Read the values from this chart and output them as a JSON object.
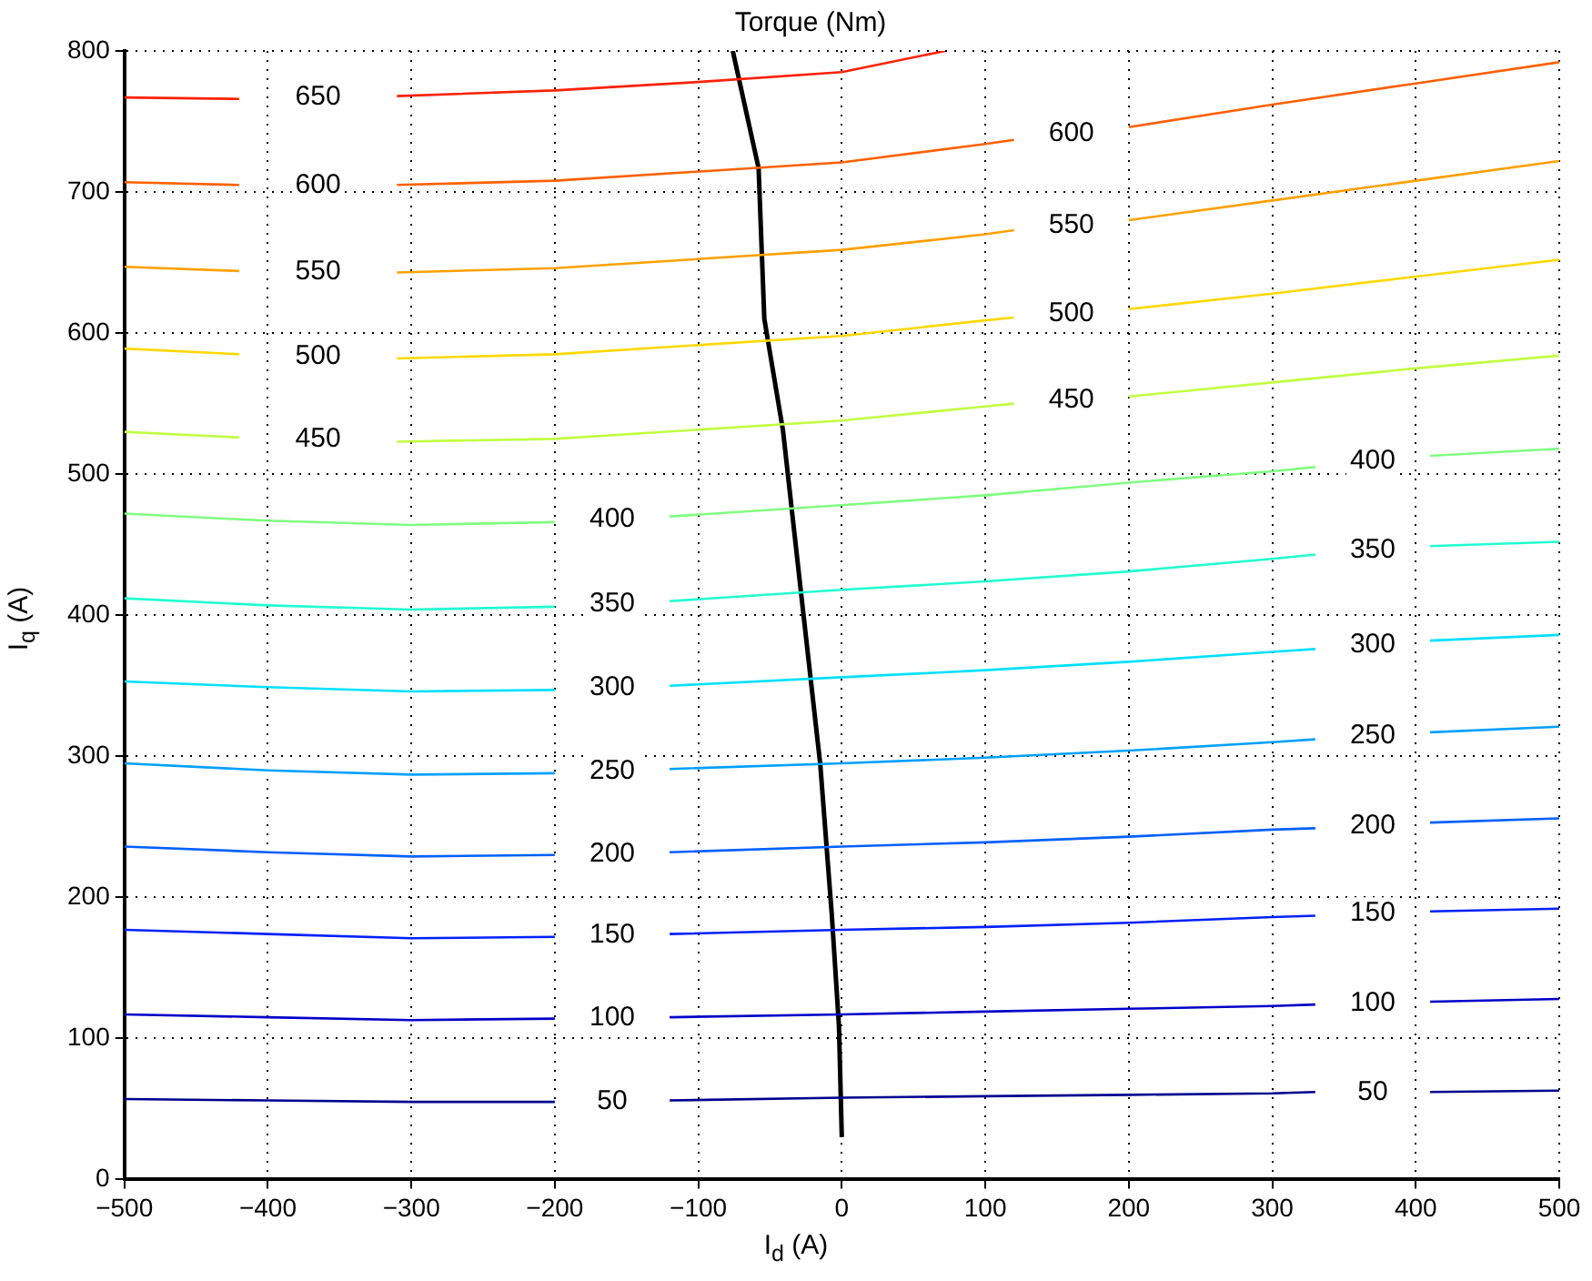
{
  "chart_data": {
    "type": "line",
    "title": "Torque (Nm)",
    "xlabel": "I$_{d}$ (A)",
    "ylabel": "I$_{q}$ (A)",
    "xlim": [
      -500,
      500
    ],
    "ylim": [
      0,
      800
    ],
    "xticks": [
      {
        "value": -500,
        "label": "−500"
      },
      {
        "value": -400,
        "label": "−400"
      },
      {
        "value": -300,
        "label": "−300"
      },
      {
        "value": -200,
        "label": "−200"
      },
      {
        "value": -100,
        "label": "−100"
      },
      0,
      100,
      200,
      300,
      400,
      500
    ],
    "yticks": [
      0,
      100,
      200,
      300,
      400,
      500,
      600,
      700,
      800
    ],
    "grid": true,
    "marker": "none",
    "line_style": "solid",
    "series": [
      {
        "name": "50",
        "color": "#00008f",
        "x": [
          -500,
          -400,
          -300,
          -200,
          -160,
          -120,
          0,
          100,
          200,
          300,
          330,
          370,
          410,
          500
        ],
        "values": [
          57,
          56,
          55,
          55,
          null,
          56,
          58,
          59,
          60,
          61,
          62,
          null,
          62,
          63
        ]
      },
      {
        "name": "100",
        "color": "#0000c8",
        "x": [
          -500,
          -400,
          -300,
          -200,
          -160,
          -120,
          0,
          100,
          200,
          300,
          330,
          370,
          410,
          500
        ],
        "values": [
          117,
          115,
          113,
          114,
          null,
          115,
          117,
          119,
          121,
          123,
          124,
          null,
          126,
          128
        ]
      },
      {
        "name": "150",
        "color": "#0020ff",
        "x": [
          -500,
          -400,
          -300,
          -200,
          -160,
          -120,
          0,
          100,
          200,
          300,
          330,
          370,
          410,
          500
        ],
        "values": [
          177,
          174,
          171,
          172,
          null,
          174,
          177,
          179,
          182,
          186,
          187,
          null,
          190,
          192
        ]
      },
      {
        "name": "200",
        "color": "#0060ff",
        "x": [
          -500,
          -400,
          -300,
          -200,
          -160,
          -120,
          0,
          100,
          200,
          300,
          330,
          370,
          410,
          500
        ],
        "values": [
          236,
          232,
          229,
          230,
          null,
          232,
          236,
          239,
          243,
          248,
          249,
          null,
          253,
          256
        ]
      },
      {
        "name": "250",
        "color": "#00a0ff",
        "x": [
          -500,
          -400,
          -300,
          -200,
          -160,
          -120,
          0,
          100,
          200,
          300,
          330,
          370,
          410,
          500
        ],
        "values": [
          295,
          290,
          287,
          288,
          null,
          291,
          295,
          299,
          304,
          310,
          312,
          null,
          317,
          321
        ]
      },
      {
        "name": "300",
        "color": "#00e0ff",
        "x": [
          -500,
          -400,
          -300,
          -200,
          -160,
          -120,
          0,
          100,
          200,
          300,
          330,
          370,
          410,
          500
        ],
        "values": [
          353,
          349,
          346,
          347,
          null,
          350,
          356,
          361,
          367,
          374,
          376,
          null,
          382,
          386
        ]
      },
      {
        "name": "350",
        "color": "#20ffd0",
        "x": [
          -500,
          -400,
          -300,
          -200,
          -160,
          -120,
          0,
          100,
          200,
          300,
          330,
          370,
          410,
          500
        ],
        "values": [
          412,
          407,
          404,
          406,
          null,
          410,
          418,
          424,
          431,
          440,
          443,
          null,
          449,
          452
        ]
      },
      {
        "name": "400",
        "color": "#80ff80",
        "x": [
          -500,
          -400,
          -300,
          -200,
          -160,
          -120,
          0,
          100,
          200,
          300,
          330,
          370,
          410,
          500
        ],
        "values": [
          472,
          467,
          464,
          466,
          null,
          470,
          478,
          485,
          494,
          502,
          505,
          null,
          513,
          518
        ]
      },
      {
        "name": "450",
        "color": "#c0ff40",
        "x": [
          -500,
          -420,
          -365,
          -310,
          -200,
          0,
          100,
          120,
          160,
          200,
          300,
          400,
          500
        ],
        "values": [
          530,
          526,
          null,
          523,
          525,
          538,
          548,
          550,
          null,
          555,
          565,
          575,
          584
        ]
      },
      {
        "name": "500",
        "color": "#ffd800",
        "x": [
          -500,
          -420,
          -365,
          -310,
          -200,
          0,
          100,
          120,
          160,
          200,
          300,
          400,
          500
        ],
        "values": [
          589,
          585,
          null,
          582,
          585,
          598,
          609,
          611,
          null,
          617,
          628,
          640,
          652
        ]
      },
      {
        "name": "550",
        "color": "#ffa000",
        "x": [
          -500,
          -420,
          -365,
          -310,
          -200,
          0,
          100,
          120,
          160,
          200,
          300,
          400,
          500
        ],
        "values": [
          647,
          644,
          null,
          643,
          646,
          659,
          670,
          673,
          null,
          680,
          694,
          708,
          722
        ]
      },
      {
        "name": "600",
        "color": "#ff6000",
        "x": [
          -500,
          -420,
          -365,
          -310,
          -200,
          0,
          100,
          120,
          160,
          200,
          300,
          400,
          500
        ],
        "values": [
          707,
          705,
          null,
          705,
          708,
          721,
          734,
          737,
          null,
          746,
          762,
          777,
          792
        ]
      },
      {
        "name": "650",
        "color": "#ff2000",
        "x": [
          -500,
          -420,
          -365,
          -310,
          -200,
          -100,
          0,
          72
        ],
        "values": [
          767,
          766,
          null,
          768,
          772,
          778,
          785,
          800
        ]
      },
      {
        "color": "#000000",
        "x": [
          -76,
          -58,
          -54,
          -41,
          -28,
          -15,
          -7,
          -2,
          0
        ],
        "values": [
          800,
          717,
          610,
          531,
          412,
          294,
          188,
          109,
          30
        ]
      }
    ]
  }
}
